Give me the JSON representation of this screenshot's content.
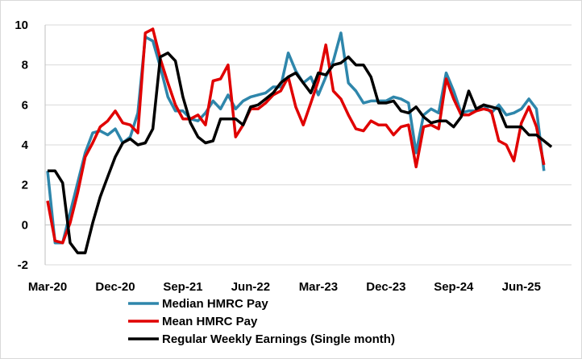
{
  "chart_data": {
    "type": "line",
    "title": "",
    "xlabel": "",
    "ylabel": "",
    "ylim": [
      -2,
      10
    ],
    "yticks": [
      "10",
      "8",
      "6",
      "4",
      "2",
      "0",
      "-2"
    ],
    "x_tick_labels": [
      "Mar-20",
      "Dec-20",
      "Sep-21",
      "Jun-22",
      "Mar-23",
      "Dec-23",
      "Sep-24",
      "Jun-25"
    ],
    "x": [
      "Mar-20",
      "Apr-20",
      "May-20",
      "Jun-20",
      "Jul-20",
      "Aug-20",
      "Sep-20",
      "Oct-20",
      "Nov-20",
      "Dec-20",
      "Jan-21",
      "Feb-21",
      "Mar-21",
      "Apr-21",
      "May-21",
      "Jun-21",
      "Jul-21",
      "Aug-21",
      "Sep-21",
      "Oct-21",
      "Nov-21",
      "Dec-21",
      "Jan-22",
      "Feb-22",
      "Mar-22",
      "Apr-22",
      "May-22",
      "Jun-22",
      "Jul-22",
      "Aug-22",
      "Sep-22",
      "Oct-22",
      "Nov-22",
      "Dec-22",
      "Jan-23",
      "Feb-23",
      "Mar-23",
      "Apr-23",
      "May-23",
      "Jun-23",
      "Jul-23",
      "Aug-23",
      "Sep-23",
      "Oct-23",
      "Nov-23",
      "Dec-23",
      "Jan-24",
      "Feb-24",
      "Mar-24",
      "Apr-24",
      "May-24",
      "Jun-24",
      "Jul-24",
      "Aug-24",
      "Sep-24",
      "Oct-24",
      "Nov-24",
      "Dec-24",
      "Jan-25",
      "Feb-25",
      "Mar-25",
      "Apr-25",
      "May-25",
      "Jun-25",
      "Jul-25",
      "Aug-25",
      "Sep-25",
      "Oct-25"
    ],
    "grid": "horizontal",
    "legend_position": "bottom",
    "series": [
      {
        "name": "Median HMRC Pay",
        "color": "#2e86ab",
        "values": [
          2.7,
          -0.9,
          -0.9,
          0.6,
          2.1,
          3.6,
          4.6,
          4.7,
          4.5,
          4.8,
          4.1,
          4.4,
          5.6,
          9.4,
          9.2,
          7.9,
          6.4,
          5.7,
          5.7,
          5.3,
          5.2,
          5.6,
          6.2,
          5.8,
          6.5,
          5.8,
          6.2,
          6.4,
          6.5,
          6.6,
          6.9,
          6.9,
          8.6,
          7.7,
          7.1,
          7.4,
          6.5,
          7.4,
          8.2,
          9.6,
          7.1,
          6.7,
          6.1,
          6.2,
          6.2,
          6.2,
          6.4,
          6.3,
          6.1,
          3.6,
          5.5,
          5.8,
          5.6,
          7.6,
          6.7,
          5.6,
          5.7,
          5.7,
          6.0,
          5.6,
          6.0,
          5.5,
          5.6,
          5.8,
          6.3,
          5.8,
          2.7,
          null
        ]
      },
      {
        "name": "Mean HMRC Pay",
        "color": "#e00000",
        "values": [
          1.2,
          -0.8,
          -0.9,
          0.1,
          1.6,
          3.4,
          4.1,
          4.9,
          5.2,
          5.7,
          5.1,
          5.0,
          4.6,
          9.6,
          9.8,
          8.3,
          7.1,
          6.0,
          5.3,
          5.3,
          5.5,
          5.0,
          7.2,
          7.3,
          8.0,
          4.4,
          5.0,
          5.8,
          5.8,
          6.1,
          6.5,
          6.7,
          7.4,
          5.9,
          5.0,
          6.1,
          7.2,
          9.0,
          6.7,
          6.3,
          5.5,
          4.8,
          4.7,
          5.2,
          5.0,
          5.0,
          4.5,
          4.9,
          5.0,
          2.9,
          4.9,
          5.0,
          4.8,
          7.3,
          6.3,
          5.5,
          5.5,
          5.7,
          5.8,
          5.7,
          4.2,
          4.0,
          3.2,
          5.1,
          5.9,
          4.9,
          3.0,
          null
        ]
      },
      {
        "name": "Regular Weekly Earnings (Single month)",
        "color": "#000000",
        "values": [
          2.7,
          2.7,
          2.1,
          -0.9,
          -1.4,
          -1.4,
          0.1,
          1.4,
          2.4,
          3.4,
          4.1,
          4.3,
          4.0,
          4.1,
          4.8,
          8.4,
          8.6,
          8.2,
          6.4,
          5.1,
          4.4,
          4.1,
          4.2,
          5.3,
          5.3,
          5.3,
          5.0,
          5.9,
          6.0,
          6.3,
          6.6,
          7.1,
          7.4,
          7.6,
          7.1,
          6.6,
          7.6,
          7.5,
          8.0,
          8.1,
          8.4,
          8.0,
          8.0,
          7.4,
          6.1,
          6.1,
          6.2,
          5.7,
          5.6,
          5.9,
          5.4,
          5.1,
          5.2,
          5.2,
          4.9,
          5.4,
          6.7,
          5.8,
          6.0,
          5.9,
          5.8,
          4.9,
          4.9,
          4.9,
          4.5,
          4.5,
          4.2,
          3.9
        ]
      }
    ]
  }
}
